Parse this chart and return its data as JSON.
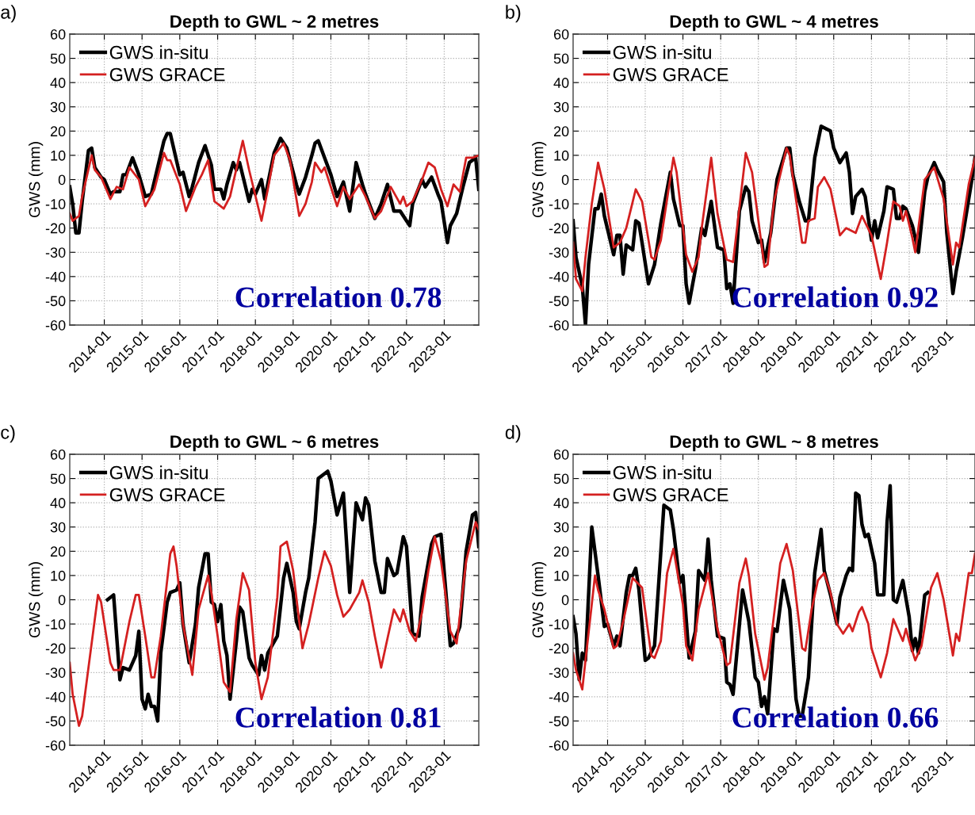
{
  "chart_data": [
    {
      "type": "line",
      "title": "Depth to GWL ~ 2 metres",
      "ylabel": "GWS (mm)",
      "annotations": [
        "a)",
        "Correlation 0.78"
      ],
      "legend": "top left",
      "grid": true,
      "xlim": [
        "2013-02",
        "2023-12"
      ],
      "ylim": [
        -60,
        60
      ],
      "xticks": [
        {
          "value": "2014-01",
          "label": "2014-01"
        },
        {
          "value": "2015-01",
          "label": "2015-01"
        },
        {
          "value": "2016-01",
          "label": "2016-01"
        },
        {
          "value": "2017-01",
          "label": "2017-01"
        },
        {
          "value": "2018-01",
          "label": "2018-01"
        },
        {
          "value": "2019-01",
          "label": "2019-01"
        },
        {
          "value": "2020-01",
          "label": "2020-01"
        },
        {
          "value": "2021-01",
          "label": "2021-01"
        },
        {
          "value": "2022-01",
          "label": "2022-01"
        },
        {
          "value": "2023-01",
          "label": "2023-01"
        }
      ],
      "yticks": [
        -60,
        -50,
        -40,
        -30,
        -20,
        -10,
        0,
        10,
        20,
        30,
        40,
        50,
        60
      ],
      "series": [
        {
          "name": "GWS in-situ",
          "color": "#000000",
          "x": [
            "2013-02",
            "2013-03",
            "2013-04",
            "2013-05",
            "2013-06",
            "2013-08",
            "2013-09",
            "2013-10",
            "2013-12",
            "2014-01",
            "2014-03",
            "2014-04",
            "2014-06",
            "2014-07",
            "2014-08",
            "2014-10",
            "2014-12",
            "2015-02",
            "2015-04",
            "2015-08",
            "2015-09",
            "2015-10",
            "2016-01",
            "2016-02",
            "2016-04",
            "2016-05",
            "2016-07",
            "2016-09",
            "2016-11",
            "2016-12",
            "2017-02",
            "2017-03",
            "2017-04",
            "2017-06",
            "2017-07",
            "2017-08",
            "2017-11",
            "2017-12",
            "2018-01",
            "2018-03",
            "2018-04",
            "2018-07",
            "2018-09",
            "2018-11",
            "2019-02",
            "2019-03",
            "2019-05",
            "2019-07",
            "2019-08",
            "2019-09",
            "2019-11",
            "2020-01",
            "2020-03",
            "2020-05",
            "2020-07",
            "2020-09",
            "2020-11",
            "2020-12",
            "2021-03",
            "2021-05",
            "2021-07",
            "2021-09",
            "2021-11",
            "2022-02",
            "2022-03",
            "2022-06",
            "2022-07",
            "2022-09",
            "2022-11",
            "2022-12",
            "2023-02",
            "2023-03",
            "2023-05",
            "2023-07",
            "2023-09",
            "2023-11",
            "2023-12"
          ],
          "values": [
            -3,
            -10,
            -22,
            -22,
            -9,
            12,
            13,
            5,
            1,
            0,
            -6,
            -5,
            -5,
            2,
            2,
            9,
            2,
            -7,
            -6,
            16,
            19,
            19,
            2,
            3,
            -7,
            -3,
            7,
            14,
            6,
            -4,
            -4,
            -8,
            -2,
            7,
            4,
            7,
            -9,
            -4,
            -6,
            0,
            -8,
            11,
            17,
            13,
            -2,
            -6,
            1,
            10,
            15,
            16,
            9,
            2,
            -7,
            -1,
            -13,
            7,
            -2,
            -6,
            -16,
            -10,
            -2,
            -13,
            -13,
            -19,
            -10,
            0,
            -3,
            1,
            -6,
            -9,
            -26,
            -19,
            -14,
            -3,
            7,
            9,
            -4
          ]
        },
        {
          "name": "GWS GRACE",
          "color": "#d42020",
          "x": [
            "2013-02",
            "2013-03",
            "2013-05",
            "2013-06",
            "2013-09",
            "2013-10",
            "2013-12",
            "2014-03",
            "2014-05",
            "2014-07",
            "2014-09",
            "2014-12",
            "2015-02",
            "2015-05",
            "2015-08",
            "2015-09",
            "2015-10",
            "2016-01",
            "2016-03",
            "2016-06",
            "2016-08",
            "2016-10",
            "2016-12",
            "2017-03",
            "2017-05",
            "2017-09",
            "2017-11",
            "2018-03",
            "2018-05",
            "2018-07",
            "2018-10",
            "2018-12",
            "2019-03",
            "2019-05",
            "2019-07",
            "2019-08",
            "2019-10",
            "2019-11",
            "2020-03",
            "2020-05",
            "2020-07",
            "2020-10",
            "2020-12",
            "2021-03",
            "2021-05",
            "2021-08",
            "2021-11",
            "2021-12",
            "2022-01",
            "2022-03",
            "2022-06",
            "2022-08",
            "2022-10",
            "2022-12",
            "2023-02",
            "2023-04",
            "2023-06",
            "2023-08",
            "2023-10",
            "2023-12"
          ],
          "values": [
            -14,
            -17,
            -15,
            -7,
            10,
            4,
            1,
            -8,
            -3,
            -4,
            5,
            0,
            -11,
            -4,
            11,
            8,
            8,
            -2,
            -13,
            -3,
            2,
            8,
            -9,
            -12,
            -7,
            16,
            4,
            -17,
            -4,
            10,
            15,
            8,
            -15,
            -10,
            -1,
            7,
            3,
            5,
            -11,
            -3,
            -8,
            -2,
            -7,
            -16,
            -13,
            -3,
            -10,
            -7,
            -11,
            -9,
            0,
            7,
            5,
            -4,
            -11,
            -2,
            -5,
            9,
            9,
            10
          ]
        }
      ]
    },
    {
      "type": "line",
      "title": "Depth to GWL ~ 4 metres",
      "ylabel": "GWS (mm)",
      "annotations": [
        "b)",
        "Correlation 0.92"
      ],
      "legend": "top left",
      "grid": true,
      "xlim": [
        "2013-02",
        "2023-10"
      ],
      "ylim": [
        -60,
        60
      ],
      "xticks": [
        {
          "value": "2014-01",
          "label": "2014-01"
        },
        {
          "value": "2015-01",
          "label": "2015-01"
        },
        {
          "value": "2016-01",
          "label": "2016-01"
        },
        {
          "value": "2017-01",
          "label": "2017-01"
        },
        {
          "value": "2018-01",
          "label": "2018-01"
        },
        {
          "value": "2019-01",
          "label": "2019-01"
        },
        {
          "value": "2020-01",
          "label": "2020-01"
        },
        {
          "value": "2021-01",
          "label": "2021-01"
        },
        {
          "value": "2022-01",
          "label": "2022-01"
        },
        {
          "value": "2023-01",
          "label": "2023-01"
        }
      ],
      "yticks": [
        -60,
        -50,
        -40,
        -30,
        -20,
        -10,
        0,
        10,
        20,
        30,
        40,
        50,
        60
      ],
      "series": [
        {
          "name": "GWS in-situ",
          "color": "#000000",
          "x": [
            "2013-02",
            "2013-03",
            "2013-05",
            "2013-06",
            "2013-07",
            "2013-09",
            "2013-10",
            "2013-11",
            "2013-12",
            "2014-03",
            "2014-04",
            "2014-05",
            "2014-06",
            "2014-07",
            "2014-09",
            "2014-10",
            "2014-11",
            "2014-12",
            "2015-02",
            "2015-04",
            "2015-06",
            "2015-09",
            "2015-10",
            "2015-12",
            "2016-01",
            "2016-02",
            "2016-03",
            "2016-05",
            "2016-07",
            "2016-08",
            "2016-10",
            "2016-12",
            "2017-02",
            "2017-03",
            "2017-04",
            "2017-05",
            "2017-07",
            "2017-09",
            "2017-10",
            "2017-11",
            "2018-01",
            "2018-02",
            "2018-03",
            "2018-05",
            "2018-07",
            "2018-10",
            "2018-11",
            "2018-12",
            "2019-02",
            "2019-04",
            "2019-05",
            "2019-07",
            "2019-09",
            "2019-12",
            "2020-01",
            "2020-03",
            "2020-05",
            "2020-06",
            "2020-07",
            "2020-08",
            "2020-10",
            "2020-11",
            "2021-01",
            "2021-02",
            "2021-03",
            "2021-05",
            "2021-06",
            "2021-08",
            "2021-09",
            "2021-10",
            "2021-11",
            "2021-12",
            "2022-02",
            "2022-03",
            "2022-04",
            "2022-06",
            "2022-07",
            "2022-09",
            "2022-10",
            "2022-12",
            "2023-01",
            "2023-03",
            "2023-04",
            "2023-06",
            "2023-09",
            "2023-10"
          ],
          "values": [
            -17,
            -32,
            -44,
            -60,
            -35,
            -12,
            -12,
            -6,
            -15,
            -31,
            -23,
            -23,
            -39,
            -27,
            -29,
            -17,
            -18,
            -26,
            -43,
            -35,
            -18,
            3,
            -8,
            -19,
            -19,
            -43,
            -51,
            -37,
            -20,
            -23,
            -9,
            -28,
            -29,
            -45,
            -43,
            -51,
            -13,
            -3,
            -5,
            -17,
            -26,
            -25,
            -34,
            -22,
            0,
            13,
            13,
            2,
            -9,
            -17,
            -17,
            9,
            22,
            20,
            13,
            7,
            11,
            3,
            -14,
            -7,
            -4,
            -7,
            -25,
            -17,
            -24,
            -13,
            -3,
            -4,
            -16,
            -16,
            -11,
            -12,
            -19,
            -24,
            -30,
            -5,
            1,
            7,
            4,
            -1,
            -22,
            -47,
            -38,
            -24,
            0,
            9
          ]
        },
        {
          "name": "GWS GRACE",
          "color": "#d42020",
          "x": [
            "2013-02",
            "2013-03",
            "2013-05",
            "2013-06",
            "2013-08",
            "2013-10",
            "2013-12",
            "2014-03",
            "2014-05",
            "2014-07",
            "2014-10",
            "2014-12",
            "2015-03",
            "2015-04",
            "2015-06",
            "2015-10",
            "2015-11",
            "2016-02",
            "2016-04",
            "2016-06",
            "2016-07",
            "2016-10",
            "2016-12",
            "2017-03",
            "2017-05",
            "2017-09",
            "2017-11",
            "2018-03",
            "2018-04",
            "2018-06",
            "2018-10",
            "2018-11",
            "2019-03",
            "2019-04",
            "2019-05",
            "2019-07",
            "2019-08",
            "2019-10",
            "2019-12",
            "2020-03",
            "2020-05",
            "2020-08",
            "2020-10",
            "2021-01",
            "2021-04",
            "2021-06",
            "2021-08",
            "2021-10",
            "2021-11",
            "2021-12",
            "2022-02",
            "2022-03",
            "2022-06",
            "2022-09",
            "2022-12",
            "2023-03",
            "2023-04",
            "2023-05",
            "2023-08",
            "2023-10"
          ],
          "values": [
            -26,
            -41,
            -46,
            -32,
            -10,
            7,
            -4,
            -28,
            -26,
            -20,
            -4,
            -9,
            -32,
            -33,
            -25,
            9,
            3,
            -31,
            -38,
            -32,
            -20,
            9,
            -14,
            -33,
            -34,
            11,
            3,
            -36,
            -35,
            -9,
            13,
            10,
            -26,
            -26,
            -17,
            -16,
            -3,
            1,
            -4,
            -23,
            -20,
            -22,
            -15,
            -23,
            -41,
            -26,
            -9,
            -11,
            -17,
            -13,
            -24,
            -30,
            0,
            5,
            -8,
            -35,
            -26,
            -28,
            -2,
            9
          ]
        }
      ]
    },
    {
      "type": "line",
      "title": "Depth to GWL ~ 6 metres",
      "ylabel": "GWS (mm)",
      "annotations": [
        "c)",
        "Correlation 0.81"
      ],
      "legend": "top left",
      "grid": true,
      "xlim": [
        "2013-02",
        "2023-12"
      ],
      "ylim": [
        -60,
        60
      ],
      "xticks": [
        {
          "value": "2014-01",
          "label": "2014-01"
        },
        {
          "value": "2015-01",
          "label": "2015-01"
        },
        {
          "value": "2016-01",
          "label": "2016-01"
        },
        {
          "value": "2017-01",
          "label": "2017-01"
        },
        {
          "value": "2018-01",
          "label": "2018-01"
        },
        {
          "value": "2019-01",
          "label": "2019-01"
        },
        {
          "value": "2020-01",
          "label": "2020-01"
        },
        {
          "value": "2021-01",
          "label": "2021-01"
        },
        {
          "value": "2022-01",
          "label": "2022-01"
        },
        {
          "value": "2023-01",
          "label": "2023-01"
        }
      ],
      "yticks": [
        -60,
        -50,
        -40,
        -30,
        -20,
        -10,
        0,
        10,
        20,
        30,
        40,
        50,
        60
      ],
      "series": [
        {
          "name": "GWS in-situ",
          "color": "#000000",
          "x": [
            "2014-02",
            "2014-04",
            "2014-06",
            "2014-07",
            "2014-09",
            "2014-11",
            "2014-12",
            "2015-01",
            "2015-02",
            "2015-03",
            "2015-04",
            "2015-05",
            "2015-06",
            "2015-07",
            "2015-09",
            "2015-10",
            "2015-12",
            "2016-01",
            "2016-02",
            "2016-04",
            "2016-06",
            "2016-07",
            "2016-09",
            "2016-10",
            "2016-11",
            "2016-12",
            "2017-01",
            "2017-02",
            "2017-03",
            "2017-04",
            "2017-05",
            "2017-07",
            "2017-08",
            "2017-09",
            "2017-11",
            "2017-12",
            "2018-02",
            "2018-03",
            "2018-04",
            "2018-05",
            "2018-08",
            "2018-10",
            "2018-11",
            "2019-01",
            "2019-02",
            "2019-03",
            "2019-05",
            "2019-06",
            "2019-08",
            "2019-09",
            "2019-12",
            "2020-01",
            "2020-03",
            "2020-05",
            "2020-07",
            "2020-09",
            "2020-11",
            "2020-12",
            "2021-01",
            "2021-03",
            "2021-05",
            "2021-06",
            "2021-07",
            "2021-09",
            "2021-10",
            "2021-12",
            "2022-01",
            "2022-03",
            "2022-05",
            "2022-06",
            "2022-09",
            "2022-10",
            "2022-12",
            "2023-03",
            "2023-04",
            "2023-06",
            "2023-08",
            "2023-10",
            "2023-11",
            "2023-12"
          ],
          "values": [
            0,
            2,
            -33,
            -28,
            -29,
            -23,
            -13,
            -41,
            -45,
            -39,
            -44,
            -44,
            -50,
            -22,
            -1,
            3,
            4,
            7,
            -10,
            -26,
            -10,
            5,
            19,
            19,
            -1,
            -2,
            -9,
            -2,
            -17,
            -23,
            -41,
            -17,
            -3,
            -5,
            -24,
            -27,
            -31,
            -23,
            -29,
            -22,
            -15,
            9,
            15,
            3,
            -9,
            -12,
            3,
            9,
            32,
            50,
            53,
            49,
            35,
            44,
            3,
            40,
            33,
            42,
            39,
            16,
            3,
            3,
            17,
            10,
            11,
            26,
            22,
            -14,
            -15,
            1,
            23,
            26,
            27,
            -19,
            -18,
            -11,
            20,
            35,
            36,
            22
          ]
        },
        {
          "name": "GWS GRACE",
          "color": "#d42020",
          "x": [
            "2013-02",
            "2013-03",
            "2013-05",
            "2013-06",
            "2013-08",
            "2013-11",
            "2013-12",
            "2014-03",
            "2014-04",
            "2014-06",
            "2014-09",
            "2014-11",
            "2014-12",
            "2015-02",
            "2015-04",
            "2015-05",
            "2015-07",
            "2015-10",
            "2015-11",
            "2015-12",
            "2016-02",
            "2016-05",
            "2016-07",
            "2016-10",
            "2016-11",
            "2017-01",
            "2017-03",
            "2017-05",
            "2017-07",
            "2017-09",
            "2017-11",
            "2018-01",
            "2018-03",
            "2018-05",
            "2018-08",
            "2018-09",
            "2018-11",
            "2019-01",
            "2019-04",
            "2019-06",
            "2019-09",
            "2019-11",
            "2020-01",
            "2020-03",
            "2020-05",
            "2020-07",
            "2020-10",
            "2020-11",
            "2021-01",
            "2021-03",
            "2021-05",
            "2021-07",
            "2021-09",
            "2021-11",
            "2021-12",
            "2022-02",
            "2022-04",
            "2022-06",
            "2022-08",
            "2022-10",
            "2022-12",
            "2023-03",
            "2023-05",
            "2023-08",
            "2023-11",
            "2023-12"
          ],
          "values": [
            -26,
            -39,
            -52,
            -48,
            -28,
            2,
            -1,
            -26,
            -29,
            -29,
            -9,
            2,
            2,
            -15,
            -32,
            -32,
            -15,
            19,
            22,
            14,
            -10,
            -31,
            -4,
            10,
            3,
            -15,
            -34,
            -38,
            -8,
            11,
            4,
            -26,
            -41,
            -32,
            1,
            22,
            24,
            12,
            -20,
            -10,
            9,
            20,
            14,
            2,
            -7,
            -4,
            3,
            8,
            -1,
            -15,
            -28,
            -16,
            -4,
            -9,
            -4,
            -13,
            -17,
            -5,
            12,
            26,
            16,
            -13,
            -18,
            16,
            32,
            29
          ]
        }
      ]
    },
    {
      "type": "line",
      "title": "Depth to GWL ~ 8 metres",
      "ylabel": "GWS (mm)",
      "annotations": [
        "d)",
        "Correlation 0.66"
      ],
      "legend": "top left",
      "grid": true,
      "xlim": [
        "2013-02",
        "2023-10"
      ],
      "ylim": [
        -60,
        60
      ],
      "xticks": [
        {
          "value": "2014-01",
          "label": "2014-01"
        },
        {
          "value": "2015-01",
          "label": "2015-01"
        },
        {
          "value": "2016-01",
          "label": "2016-01"
        },
        {
          "value": "2017-01",
          "label": "2017-01"
        },
        {
          "value": "2018-01",
          "label": "2018-01"
        },
        {
          "value": "2019-01",
          "label": "2019-01"
        },
        {
          "value": "2020-01",
          "label": "2020-01"
        },
        {
          "value": "2021-01",
          "label": "2021-01"
        },
        {
          "value": "2022-01",
          "label": "2022-01"
        },
        {
          "value": "2023-01",
          "label": "2023-01"
        }
      ],
      "yticks": [
        -60,
        -50,
        -40,
        -30,
        -20,
        -10,
        0,
        10,
        20,
        30,
        40,
        50,
        60
      ],
      "series": [
        {
          "name": "GWS in-situ",
          "color": "#000000",
          "x": [
            "2013-02",
            "2013-03",
            "2013-04",
            "2013-05",
            "2013-06",
            "2013-08",
            "2013-10",
            "2013-12",
            "2014-01",
            "2014-03",
            "2014-04",
            "2014-05",
            "2014-07",
            "2014-08",
            "2014-09",
            "2014-10",
            "2014-11",
            "2015-01",
            "2015-02",
            "2015-04",
            "2015-07",
            "2015-09",
            "2015-10",
            "2015-12",
            "2016-01",
            "2016-03",
            "2016-05",
            "2016-06",
            "2016-08",
            "2016-09",
            "2016-10",
            "2016-12",
            "2017-02",
            "2017-03",
            "2017-04",
            "2017-05",
            "2017-08",
            "2017-10",
            "2017-12",
            "2018-01",
            "2018-02",
            "2018-03",
            "2018-04",
            "2018-06",
            "2018-07",
            "2018-09",
            "2018-11",
            "2019-01",
            "2019-02",
            "2019-03",
            "2019-05",
            "2019-07",
            "2019-09",
            "2019-10",
            "2019-12",
            "2020-02",
            "2020-03",
            "2020-05",
            "2020-06",
            "2020-07",
            "2020-08",
            "2020-09",
            "2020-10",
            "2020-11",
            "2020-12",
            "2021-02",
            "2021-03",
            "2021-05",
            "2021-06",
            "2021-07",
            "2021-08",
            "2021-09",
            "2021-11",
            "2022-01",
            "2022-02",
            "2022-03",
            "2022-04",
            "2022-06",
            "2022-07"
          ],
          "values": [
            -7,
            -14,
            -33,
            -22,
            -25,
            30,
            10,
            -11,
            -10,
            -19,
            -15,
            -19,
            3,
            10,
            10,
            13,
            4,
            -25,
            -24,
            -19,
            39,
            37,
            29,
            7,
            10,
            -24,
            -13,
            12,
            8,
            25,
            8,
            -15,
            -16,
            -34,
            -35,
            -39,
            4,
            -9,
            -32,
            -34,
            -44,
            -40,
            -47,
            -12,
            -13,
            8,
            -4,
            -41,
            -48,
            -48,
            -32,
            11,
            29,
            12,
            2,
            -10,
            1,
            10,
            13,
            12,
            44,
            43,
            31,
            26,
            27,
            15,
            2,
            2,
            32,
            47,
            0,
            -1,
            8,
            -7,
            -21,
            -16,
            -22,
            2,
            3
          ]
        },
        {
          "name": "GWS GRACE",
          "color": "#d42020",
          "x": [
            "2013-02",
            "2013-03",
            "2013-05",
            "2013-06",
            "2013-09",
            "2013-10",
            "2013-12",
            "2014-03",
            "2014-04",
            "2014-06",
            "2014-09",
            "2014-12",
            "2015-03",
            "2015-04",
            "2015-06",
            "2015-08",
            "2015-10",
            "2016-01",
            "2016-02",
            "2016-04",
            "2016-06",
            "2016-09",
            "2016-12",
            "2017-03",
            "2017-04",
            "2017-07",
            "2017-09",
            "2017-10",
            "2017-12",
            "2018-03",
            "2018-04",
            "2018-08",
            "2018-10",
            "2018-12",
            "2019-03",
            "2019-04",
            "2019-06",
            "2019-08",
            "2019-10",
            "2019-12",
            "2020-02",
            "2020-04",
            "2020-06",
            "2020-07",
            "2020-09",
            "2020-10",
            "2020-12",
            "2021-01",
            "2021-04",
            "2021-06",
            "2021-08",
            "2021-09",
            "2021-11",
            "2021-12",
            "2022-01",
            "2022-03",
            "2022-05",
            "2022-08",
            "2022-10",
            "2022-12",
            "2023-03",
            "2023-04",
            "2023-05",
            "2023-08",
            "2023-09",
            "2023-10"
          ],
          "values": [
            -22,
            -29,
            -37,
            -25,
            10,
            4,
            -4,
            -20,
            -19,
            -9,
            9,
            5,
            -23,
            -24,
            -17,
            11,
            21,
            -2,
            -19,
            -25,
            -4,
            11,
            -12,
            -27,
            -26,
            7,
            17,
            10,
            -14,
            -33,
            -28,
            15,
            23,
            12,
            -20,
            -21,
            -4,
            8,
            11,
            3,
            -10,
            -14,
            -10,
            -13,
            -5,
            -3,
            -10,
            -20,
            -32,
            -22,
            -8,
            -11,
            -17,
            -12,
            -17,
            -25,
            -19,
            5,
            11,
            0,
            -23,
            -14,
            -17,
            11,
            11,
            19
          ]
        }
      ]
    }
  ]
}
